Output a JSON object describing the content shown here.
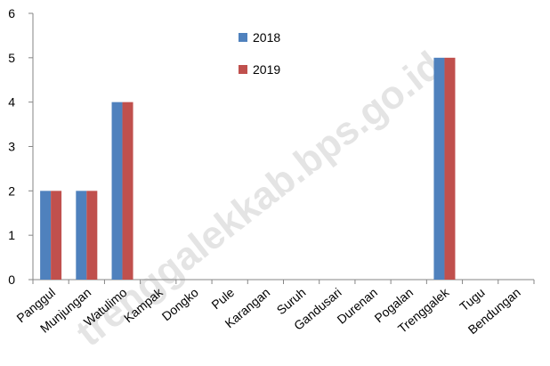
{
  "chart_data": {
    "type": "bar",
    "categories": [
      "Panggul",
      "Munjungan",
      "Watulimo",
      "Kampak",
      "Dongko",
      "Pule",
      "Karangan",
      "Suruh",
      "Gandusari",
      "Durenan",
      "Pogalan",
      "Trenggalek",
      "Tugu",
      "Bendungan"
    ],
    "series": [
      {
        "name": "2018",
        "color": "#4f81bd",
        "values": [
          2,
          2,
          4,
          0,
          0,
          0,
          0,
          0,
          0,
          0,
          0,
          5,
          0,
          0
        ]
      },
      {
        "name": "2019",
        "color": "#c0504d",
        "values": [
          2,
          2,
          4,
          0,
          0,
          0,
          0,
          0,
          0,
          0,
          0,
          5,
          0,
          0
        ]
      }
    ],
    "ylim": [
      0,
      6
    ],
    "yticks": [
      0,
      1,
      2,
      3,
      4,
      5,
      6
    ],
    "grid": false,
    "watermark": "trenggalekkab.bps.go.id"
  }
}
